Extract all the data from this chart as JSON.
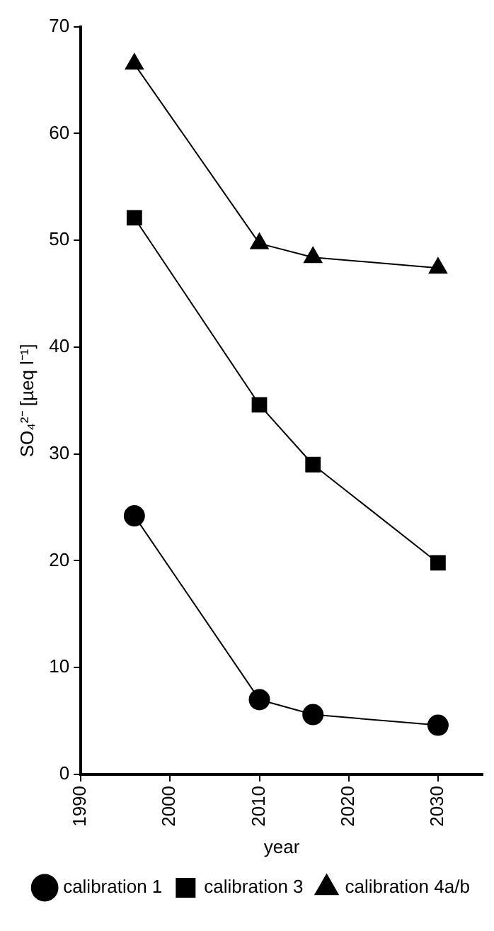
{
  "chart_data": {
    "type": "line",
    "xlabel": "year",
    "ylabel": "SO₄²⁻ [µeq l⁻¹]",
    "x": [
      1996,
      2010,
      2016,
      2030
    ],
    "series": [
      {
        "name": "calibration 1",
        "color": "#000000",
        "marker": "circle",
        "values": [
          24.2,
          7.0,
          5.6,
          4.6
        ]
      },
      {
        "name": "calibration 3",
        "color": "#000000",
        "marker": "square",
        "values": [
          52.1,
          34.6,
          29.0,
          19.8
        ]
      },
      {
        "name": "calibration 4a/b",
        "color": "#000000",
        "marker": "triangle",
        "values": [
          66.5,
          49.7,
          48.4,
          47.4
        ]
      }
    ],
    "xlim": [
      1990,
      2035
    ],
    "xticks": [
      1990,
      2000,
      2010,
      2020,
      2030
    ],
    "ylim": [
      0,
      70
    ],
    "yticks": [
      0,
      10,
      20,
      30,
      40,
      50,
      60,
      70
    ],
    "grid": false,
    "legend": "bottom",
    "line_style": "solid"
  }
}
